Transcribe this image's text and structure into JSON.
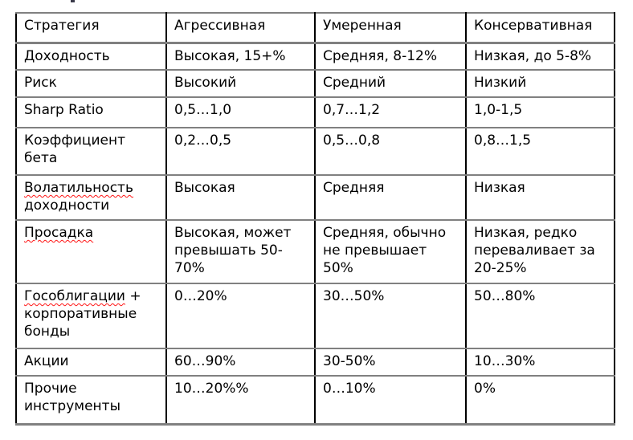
{
  "table": {
    "header": [
      "Стратегия",
      "Агрессивная",
      "Умеренная",
      "Консервативная"
    ],
    "rows": [
      {
        "cells": [
          "Доходность",
          "Высокая, 15+%",
          "Средняя, 8-12%",
          "Низкая, до 5-8%"
        ]
      },
      {
        "cells": [
          "Риск",
          "Высокий",
          "Средний",
          "Низкий"
        ]
      },
      {
        "cells": [
          "Sharp Ratio",
          "0,5…1,0",
          "0,7…1,2",
          "1,0-1,5"
        ]
      },
      {
        "cells": [
          "Коэффициент\nбета",
          "0,2…0,5",
          "0,5…0,8",
          "0,8…1,5"
        ]
      },
      {
        "cells": [
          "Волатильность\nдоходности",
          "Высокая",
          "Средняя",
          "Низкая"
        ],
        "misspelled": [
          "Волатильность"
        ]
      },
      {
        "cells": [
          "Просадка",
          "Высокая, может\nпревышать 50-\n70%",
          "Средняя, обычно\nне превышает\n50%",
          "Низкая, редко\nпереваливает за\n20-25%"
        ],
        "misspelled": [
          "Просадка"
        ]
      },
      {
        "cells": [
          "Гособлигации +\nкорпоративные\nбонды",
          "0…20%",
          "30…50%",
          "50…80%"
        ],
        "misspelled": [
          "Гособлигации"
        ]
      },
      {
        "cells": [
          "Акции",
          "60…90%",
          "30-50%",
          "10…30%"
        ]
      },
      {
        "cells": [
          "Прочие\nинструменты",
          "10…20%%",
          "0…10%",
          "0%"
        ]
      }
    ]
  },
  "colors": {
    "text": "#000000",
    "background": "#ffffff",
    "grid_horizontal": "#808080",
    "grid_vertical": "#000000",
    "spellcheck_underline": "#ff1414"
  }
}
